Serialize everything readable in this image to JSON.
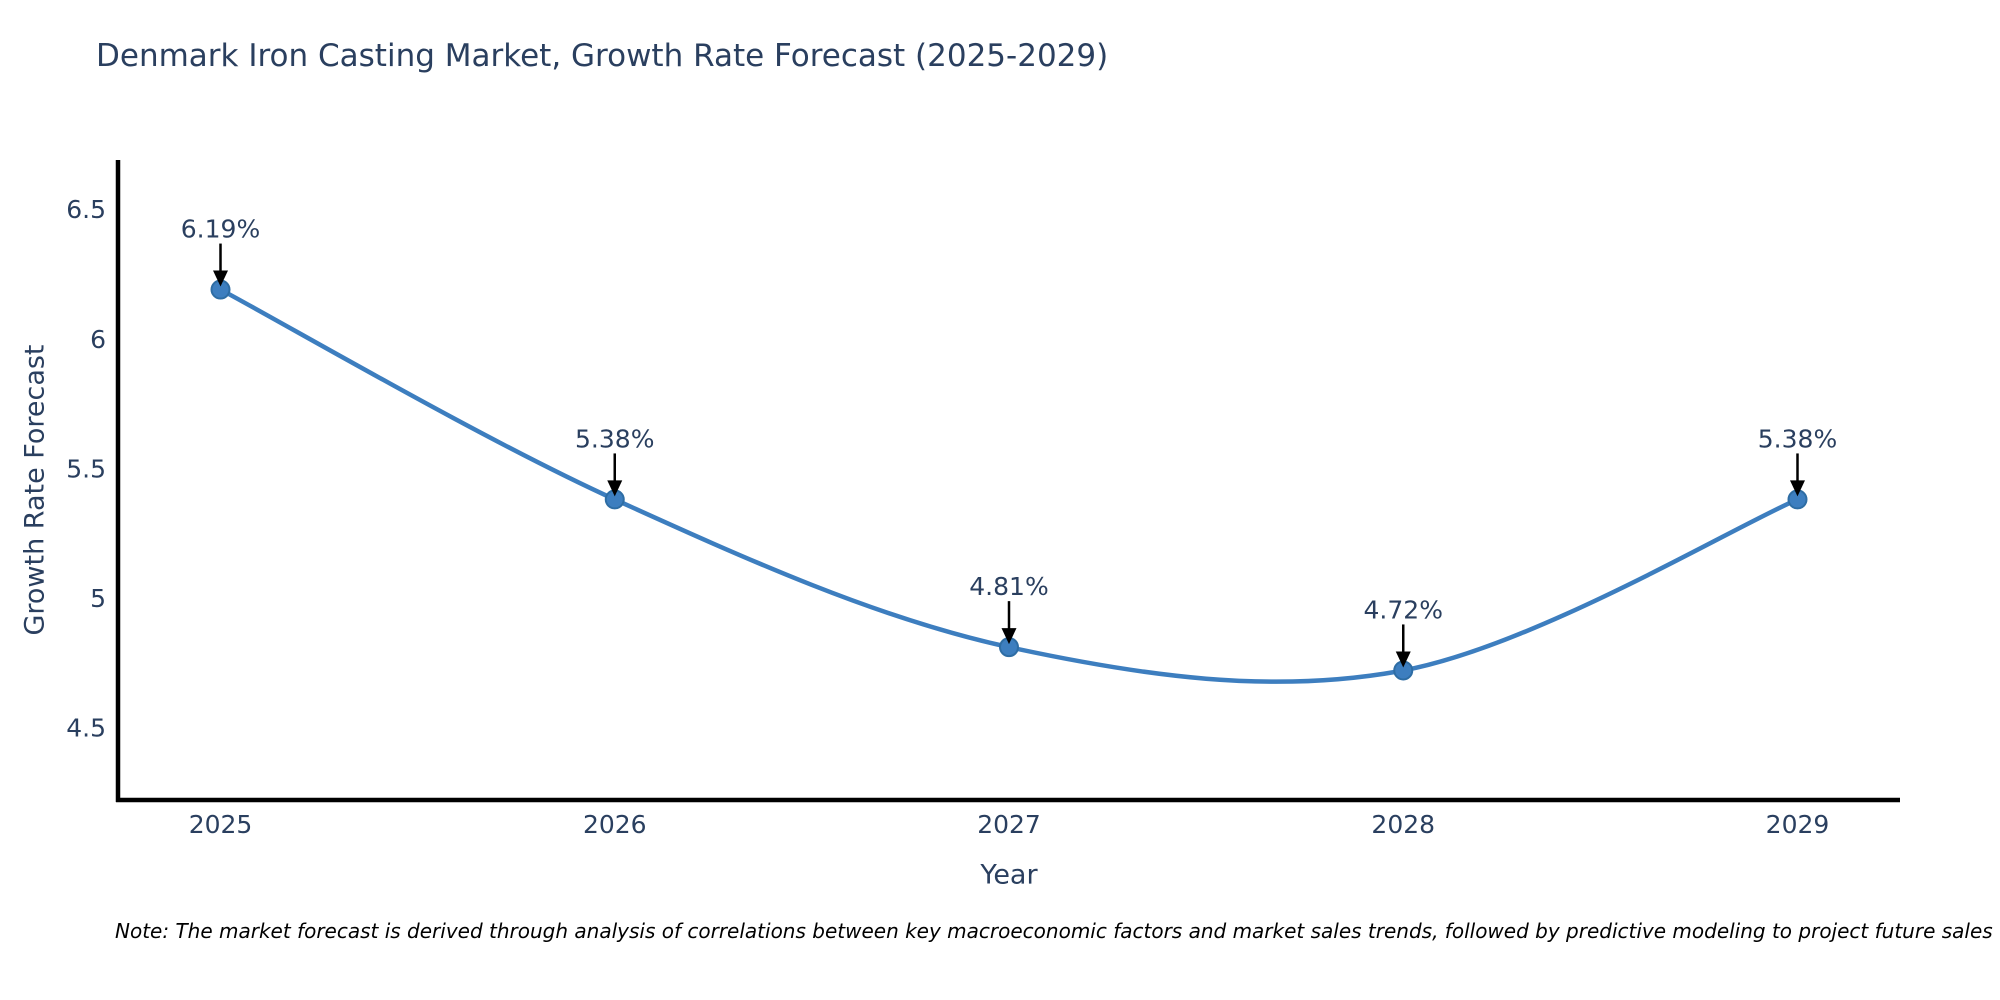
{
  "chart_data": {
    "type": "line",
    "title": "Denmark Iron Casting Market, Growth Rate Forecast (2025-2029)",
    "xlabel": "Year",
    "ylabel": "Growth Rate Forecast",
    "categories": [
      2025,
      2026,
      2027,
      2028,
      2029
    ],
    "series": [
      {
        "name": "Growth Rate Forecast",
        "values": [
          6.19,
          5.38,
          4.81,
          4.72,
          5.38
        ]
      }
    ],
    "point_labels": [
      "6.19%",
      "5.38%",
      "4.81%",
      "4.72%",
      "5.38%"
    ],
    "xtick_labels": [
      "2025",
      "2026",
      "2027",
      "2028",
      "2029"
    ],
    "yticks": [
      4.5,
      5.0,
      5.5,
      6.0,
      6.5
    ],
    "ytick_labels": [
      "4.5",
      "5",
      "5.5",
      "6",
      "6.5"
    ],
    "xlim": [
      2024.74,
      2029.26
    ],
    "ylim": [
      4.22,
      6.69
    ],
    "grid": false,
    "legend": "none",
    "line_color": "#3d7ebf",
    "marker_color": "#3d7ebf",
    "marker_edge_color": "#2e6da4",
    "annotation_arrow_color": "#000000",
    "axis_color": "#000000",
    "text_color": "#2a3f5f",
    "note": "Note: The market forecast is derived through analysis of correlations between key macroeconomic factors and market sales trends, followed by predictive modeling to project future sales"
  }
}
